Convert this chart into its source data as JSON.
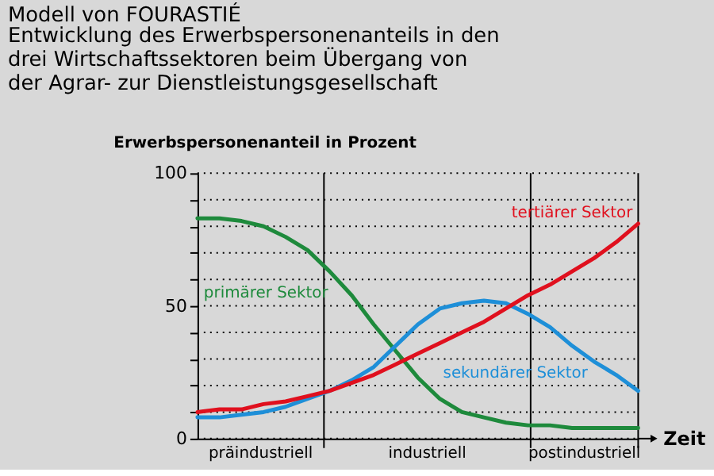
{
  "chart_data": {
    "type": "line",
    "title": "Modell von FOURASTIÉ",
    "subtitle": "Entwicklung des Erwerbspersonenanteils in den\ndrei Wirtschaftssektoren beim Übergang von\nder Agrar- zur Dienstleistungsgesellschaft",
    "ylabel": "Erwerbspersonenanteil in Prozent",
    "xlabel": "Zeit",
    "categories": [
      null,
      null,
      null,
      null,
      null,
      null,
      null,
      null,
      null,
      null,
      null,
      null,
      null,
      null,
      null,
      null,
      null,
      null,
      null,
      null,
      null
    ],
    "series": [
      {
        "name": "primärer Sektor",
        "color": "#1e8a3c",
        "values": [
          83,
          83,
          82,
          80,
          76,
          71,
          63,
          54,
          43,
          33,
          23,
          15,
          10,
          8,
          6,
          5,
          5,
          4,
          4,
          4,
          4
        ]
      },
      {
        "name": "sekundärer Sektor",
        "color": "#1e8fd8",
        "values": [
          8,
          8,
          9,
          10,
          12,
          15,
          18,
          22,
          27,
          35,
          43,
          49,
          51,
          52,
          51,
          47,
          42,
          35,
          29,
          24,
          18
        ]
      },
      {
        "name": "tertiärer Sektor",
        "color": "#e0101e",
        "values": [
          10,
          11,
          11,
          13,
          14,
          16,
          18,
          21,
          24,
          28,
          32,
          36,
          40,
          44,
          49,
          54,
          58,
          63,
          68,
          74,
          81
        ]
      }
    ],
    "ylim": [
      0,
      100
    ],
    "yticks": [
      0,
      {
        "value": 10,
        "label": null
      },
      {
        "value": 20,
        "label": null
      },
      {
        "value": 30,
        "label": null
      },
      {
        "value": 40,
        "label": null
      },
      50,
      {
        "value": 60,
        "label": null
      },
      {
        "value": 70,
        "label": null
      },
      {
        "value": 80,
        "label": null
      },
      {
        "value": 90,
        "label": null
      },
      100
    ],
    "annotations": [
      "präindustriell",
      "industriell",
      "postindustriell"
    ],
    "grid": "y",
    "marker": "none",
    "line_style": "solid",
    "tick_labels": "y"
  }
}
